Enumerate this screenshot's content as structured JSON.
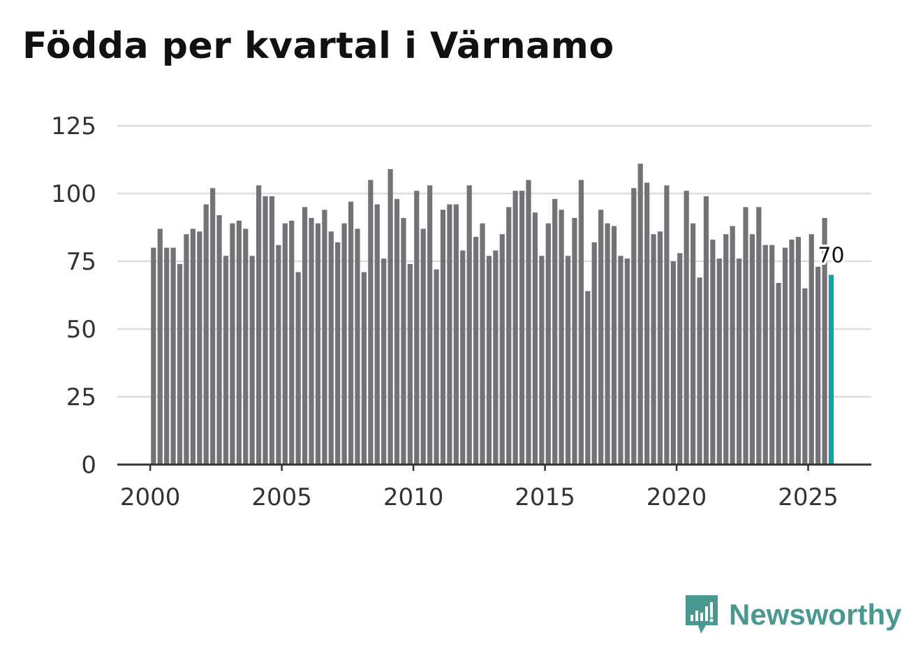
{
  "title": "Födda per kvartal i Värnamo",
  "colors": {
    "bar": "#737276",
    "highlight": "#14a1a0",
    "grid": "#dddddd",
    "axis": "#333333",
    "brand": "#4a9990"
  },
  "brand": {
    "name": "Newsworthy",
    "icon": "newsworthy-logo-icon"
  },
  "chart_data": {
    "type": "bar",
    "title": "Födda per kvartal i Värnamo",
    "xlabel": "",
    "ylabel": "",
    "ylim": [
      0,
      125
    ],
    "yticks": [
      0,
      25,
      50,
      75,
      100,
      125
    ],
    "xticks": [
      2000,
      2005,
      2010,
      2015,
      2020,
      2025
    ],
    "xlim": [
      1998.75,
      2027.4
    ],
    "grid": true,
    "legend": "none",
    "x": [
      2000.125,
      2000.375,
      2000.625,
      2000.875,
      2001.125,
      2001.375,
      2001.625,
      2001.875,
      2002.125,
      2002.375,
      2002.625,
      2002.875,
      2003.125,
      2003.375,
      2003.625,
      2003.875,
      2004.125,
      2004.375,
      2004.625,
      2004.875,
      2005.125,
      2005.375,
      2005.625,
      2005.875,
      2006.125,
      2006.375,
      2006.625,
      2006.875,
      2007.125,
      2007.375,
      2007.625,
      2007.875,
      2008.125,
      2008.375,
      2008.625,
      2008.875,
      2009.125,
      2009.375,
      2009.625,
      2009.875,
      2010.125,
      2010.375,
      2010.625,
      2010.875,
      2011.125,
      2011.375,
      2011.625,
      2011.875,
      2012.125,
      2012.375,
      2012.625,
      2012.875,
      2013.125,
      2013.375,
      2013.625,
      2013.875,
      2014.125,
      2014.375,
      2014.625,
      2014.875,
      2015.125,
      2015.375,
      2015.625,
      2015.875,
      2016.125,
      2016.375,
      2016.625,
      2016.875,
      2017.125,
      2017.375,
      2017.625,
      2017.875,
      2018.125,
      2018.375,
      2018.625,
      2018.875,
      2019.125,
      2019.375,
      2019.625,
      2019.875,
      2020.125,
      2020.375,
      2020.625,
      2020.875,
      2021.125,
      2021.375,
      2021.625,
      2021.875,
      2022.125,
      2022.375,
      2022.625,
      2022.875,
      2023.125,
      2023.375,
      2023.625,
      2023.875,
      2024.125,
      2024.375,
      2024.625,
      2024.875,
      2025.125,
      2025.375,
      2025.625,
      2025.875
    ],
    "values": [
      80,
      87,
      80,
      80,
      74,
      85,
      87,
      86,
      96,
      102,
      92,
      77,
      89,
      90,
      87,
      77,
      103,
      99,
      99,
      81,
      89,
      90,
      71,
      95,
      91,
      89,
      94,
      86,
      82,
      89,
      97,
      87,
      71,
      105,
      96,
      76,
      109,
      98,
      91,
      74,
      101,
      87,
      103,
      72,
      94,
      96,
      96,
      79,
      103,
      84,
      89,
      77,
      79,
      85,
      95,
      101,
      101,
      105,
      93,
      77,
      89,
      98,
      94,
      77,
      91,
      105,
      64,
      82,
      94,
      89,
      88,
      77,
      76,
      102,
      111,
      104,
      85,
      86,
      103,
      75,
      78,
      101,
      89,
      69,
      99,
      83,
      76,
      85,
      88,
      76,
      95,
      85,
      95,
      81,
      81,
      67,
      80,
      83,
      84,
      65,
      85,
      73,
      91,
      70
    ],
    "highlight_index": 103,
    "annotation": {
      "index": 103,
      "text": "70"
    }
  }
}
